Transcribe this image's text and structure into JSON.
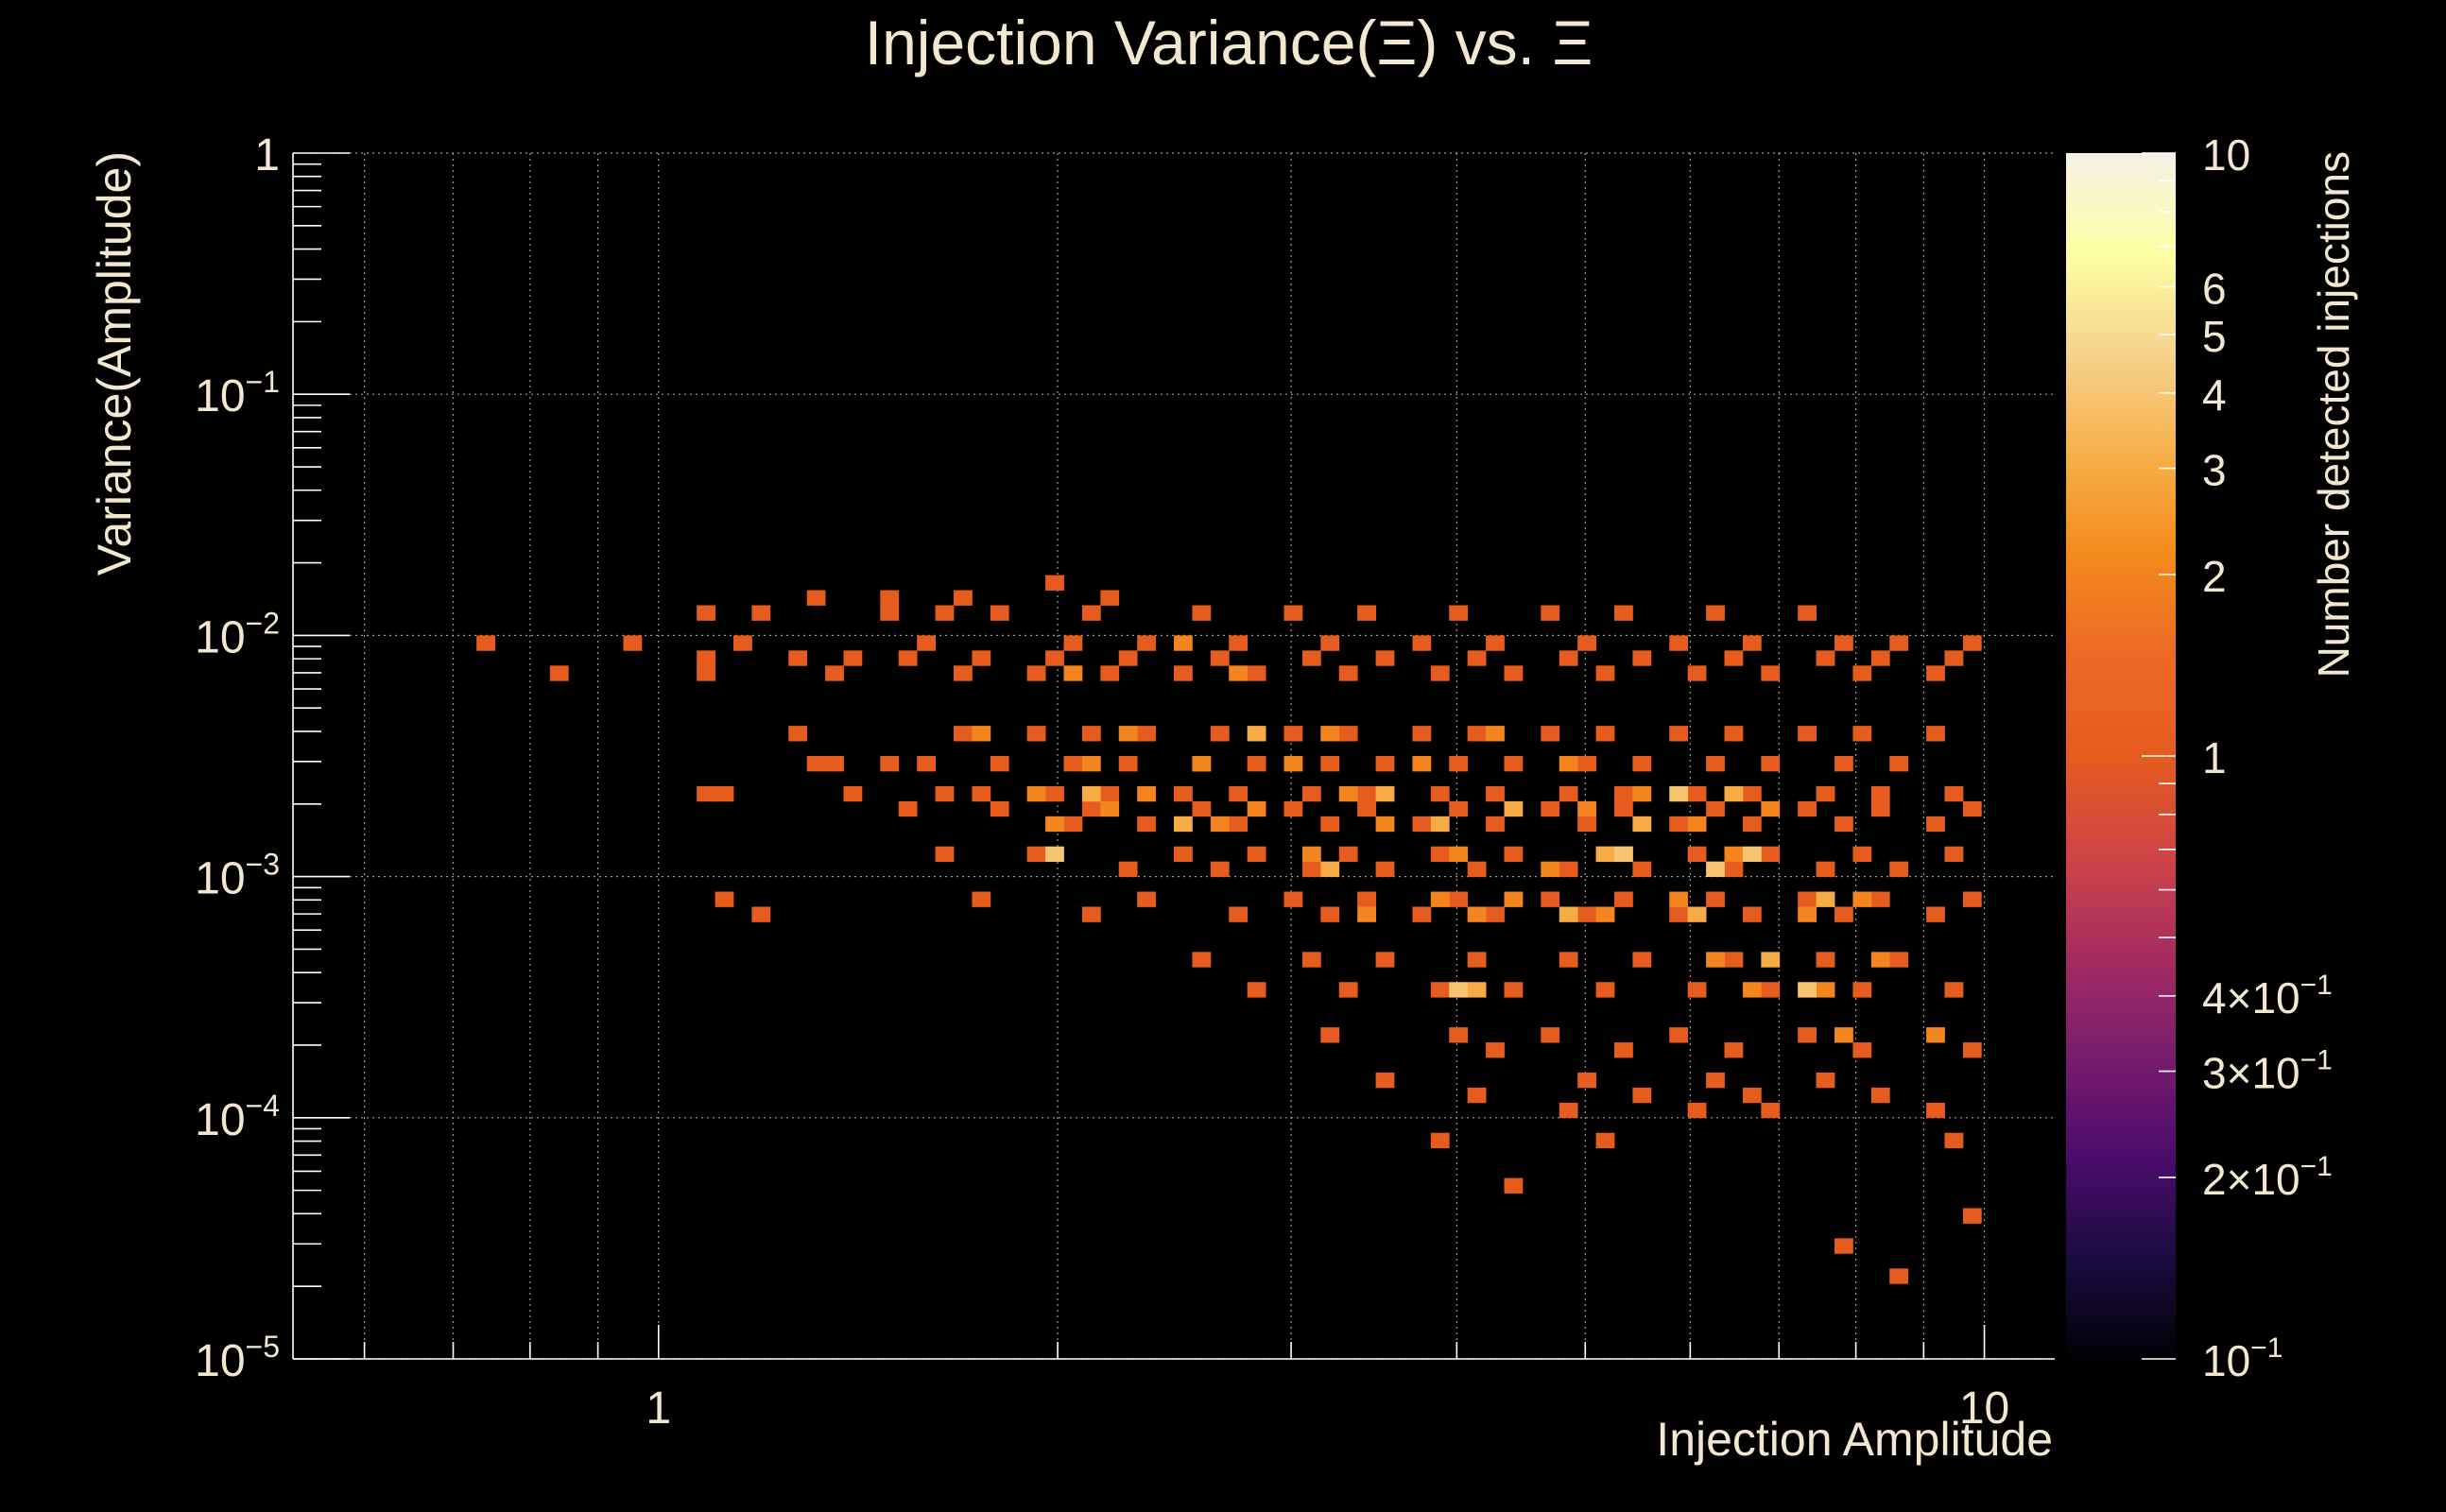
{
  "chart_data": {
    "type": "heatmap",
    "title": "Injection Variance(Ξ) vs. Ξ",
    "xlabel": "Injection Amplitude",
    "ylabel": "Variance(Amplitude)",
    "colorbar_label": "Number detected injections",
    "x_scale": "log",
    "y_scale": "log",
    "z_scale": "log",
    "xlim": [
      0.53,
      11.3
    ],
    "ylim": [
      1e-05,
      1
    ],
    "zlim": [
      0.1,
      10
    ],
    "grid": true,
    "x_ticks": [
      {
        "value": 1,
        "label": "1"
      },
      {
        "value": 10,
        "label": "10"
      }
    ],
    "y_ticks": [
      {
        "value": 1,
        "base": "1",
        "exp": ""
      },
      {
        "value": 0.1,
        "base": "10",
        "exp": "−1"
      },
      {
        "value": 0.01,
        "base": "10",
        "exp": "−2"
      },
      {
        "value": 0.001,
        "base": "10",
        "exp": "−3"
      },
      {
        "value": 0.0001,
        "base": "10",
        "exp": "−4"
      },
      {
        "value": 1e-05,
        "base": "10",
        "exp": "−5"
      }
    ],
    "colorbar_ticks": [
      {
        "value": 10,
        "label": "10"
      },
      {
        "value": 6,
        "label": "6"
      },
      {
        "value": 5,
        "label": "5"
      },
      {
        "value": 4,
        "label": "4"
      },
      {
        "value": 3,
        "label": "3"
      },
      {
        "value": 2,
        "label": "2"
      },
      {
        "value": 1,
        "label": "1"
      },
      {
        "value": 0.4,
        "label": "4×10",
        "exp": "−1"
      },
      {
        "value": 0.3,
        "label": "3×10",
        "exp": "−1"
      },
      {
        "value": 0.2,
        "label": "2×10",
        "exp": "−1"
      },
      {
        "value": 0.1,
        "label": "10",
        "exp": "−1"
      }
    ],
    "colormap": [
      "#000004",
      "#1b0c41",
      "#4a0c6b",
      "#781c6d",
      "#a52c60",
      "#cf4446",
      "#e55c1e",
      "#ed6925",
      "#f48a1c",
      "#f7b04a",
      "#f6d28c",
      "#fcffa4",
      "#f5f0e6"
    ],
    "bins": {
      "x_count": 96,
      "y_count": 80
    },
    "cells": [
      [
        0.74,
        0.0095,
        1
      ],
      [
        0.85,
        0.0066,
        1
      ],
      [
        0.95,
        0.0095,
        1
      ],
      [
        1.08,
        0.0118,
        1
      ],
      [
        1.08,
        0.0082,
        1
      ],
      [
        1.08,
        0.0066,
        1
      ],
      [
        1.08,
        0.0023,
        1
      ],
      [
        1.12,
        0.0023,
        1
      ],
      [
        1.12,
        0.00085,
        1
      ],
      [
        1.16,
        0.0095,
        1
      ],
      [
        1.21,
        0.0118,
        1
      ],
      [
        1.21,
        0.00065,
        1
      ],
      [
        1.26,
        0.0038,
        1
      ],
      [
        1.26,
        0.0082,
        1
      ],
      [
        1.31,
        0.0031,
        1
      ],
      [
        1.31,
        0.0147,
        1
      ],
      [
        1.36,
        0.0066,
        1
      ],
      [
        1.36,
        0.0031,
        1
      ],
      [
        1.41,
        0.0082,
        1
      ],
      [
        1.41,
        0.0023,
        1
      ],
      [
        1.47,
        0.0147,
        1
      ],
      [
        1.47,
        0.0118,
        1
      ],
      [
        1.47,
        0.0031,
        1
      ],
      [
        1.52,
        0.0082,
        1
      ],
      [
        1.52,
        0.0019,
        1
      ],
      [
        1.58,
        0.0031,
        1
      ],
      [
        1.58,
        0.0095,
        1
      ],
      [
        1.64,
        0.0118,
        1
      ],
      [
        1.64,
        0.0023,
        1
      ],
      [
        1.64,
        0.0013,
        1
      ],
      [
        1.7,
        0.0147,
        1
      ],
      [
        1.7,
        0.0066,
        1
      ],
      [
        1.7,
        0.0038,
        1
      ],
      [
        1.76,
        0.0082,
        1
      ],
      [
        1.76,
        0.0023,
        1
      ],
      [
        1.76,
        0.00085,
        1
      ],
      [
        1.83,
        0.0031,
        1
      ],
      [
        1.83,
        0.0019,
        1
      ],
      [
        1.83,
        0.0118,
        1
      ],
      [
        1.9,
        0.0066,
        1
      ],
      [
        1.9,
        0.0038,
        1
      ],
      [
        1.9,
        0.0013,
        1
      ],
      [
        1.97,
        0.0175,
        1
      ],
      [
        1.97,
        0.0082,
        1
      ],
      [
        1.97,
        0.0023,
        1
      ],
      [
        2.04,
        0.0095,
        1
      ],
      [
        2.04,
        0.0031,
        1
      ],
      [
        2.04,
        0.0016,
        1
      ],
      [
        2.12,
        0.0118,
        1
      ],
      [
        2.12,
        0.0038,
        1
      ],
      [
        2.12,
        0.0019,
        1
      ],
      [
        2.12,
        0.00065,
        1
      ],
      [
        2.2,
        0.0147,
        1
      ],
      [
        2.2,
        0.0066,
        1
      ],
      [
        2.2,
        0.0023,
        1
      ],
      [
        2.28,
        0.0082,
        1
      ],
      [
        2.28,
        0.0031,
        1
      ],
      [
        2.28,
        0.0011,
        1
      ],
      [
        2.37,
        0.0095,
        1
      ],
      [
        2.37,
        0.0038,
        1
      ],
      [
        2.37,
        0.0016,
        1
      ],
      [
        2.37,
        0.00085,
        1
      ],
      [
        2.46,
        0.0066,
        1
      ],
      [
        2.46,
        0.0023,
        1
      ],
      [
        2.46,
        0.0013,
        1
      ],
      [
        2.55,
        0.0118,
        1
      ],
      [
        2.55,
        0.0031,
        1
      ],
      [
        2.55,
        0.0019,
        1
      ],
      [
        2.55,
        0.00045,
        1
      ],
      [
        2.65,
        0.0082,
        1
      ],
      [
        2.65,
        0.0038,
        1
      ],
      [
        2.65,
        0.0011,
        1
      ],
      [
        2.75,
        0.0095,
        1
      ],
      [
        2.75,
        0.0023,
        1
      ],
      [
        2.75,
        0.0016,
        1
      ],
      [
        2.75,
        0.00065,
        1
      ],
      [
        2.86,
        0.0066,
        1
      ],
      [
        2.86,
        0.0031,
        1
      ],
      [
        2.86,
        0.0013,
        1
      ],
      [
        2.86,
        0.00035,
        1
      ],
      [
        2.97,
        0.0118,
        1
      ],
      [
        2.97,
        0.0038,
        1
      ],
      [
        2.97,
        0.0019,
        1
      ],
      [
        2.97,
        0.00085,
        1
      ],
      [
        3.08,
        0.0082,
        1
      ],
      [
        3.08,
        0.0023,
        1
      ],
      [
        3.08,
        0.0011,
        1
      ],
      [
        3.08,
        0.00045,
        1
      ],
      [
        3.2,
        0.0095,
        1
      ],
      [
        3.2,
        0.0031,
        1
      ],
      [
        3.2,
        0.0016,
        1
      ],
      [
        3.2,
        0.00065,
        1
      ],
      [
        3.2,
        0.00022,
        1
      ],
      [
        3.32,
        0.0066,
        1
      ],
      [
        3.32,
        0.0038,
        1
      ],
      [
        3.32,
        0.0013,
        1
      ],
      [
        3.32,
        0.00035,
        1
      ],
      [
        3.45,
        0.0118,
        1
      ],
      [
        3.45,
        0.0023,
        1
      ],
      [
        3.45,
        0.0019,
        1
      ],
      [
        3.45,
        0.00085,
        1
      ],
      [
        3.58,
        0.0082,
        1
      ],
      [
        3.58,
        0.0031,
        1
      ],
      [
        3.58,
        0.0011,
        1
      ],
      [
        3.58,
        0.00045,
        1
      ],
      [
        3.58,
        0.00015,
        1
      ],
      [
        3.72,
        0.0095,
        1
      ],
      [
        3.72,
        0.0038,
        1
      ],
      [
        3.72,
        0.0016,
        1
      ],
      [
        3.72,
        0.00065,
        1
      ],
      [
        3.86,
        0.0066,
        1
      ],
      [
        3.86,
        0.0023,
        1
      ],
      [
        3.86,
        0.0013,
        1
      ],
      [
        3.86,
        0.00035,
        1
      ],
      [
        3.86,
        8e-05,
        1
      ],
      [
        4.01,
        0.0118,
        1
      ],
      [
        4.01,
        0.0031,
        1
      ],
      [
        4.01,
        0.0019,
        1
      ],
      [
        4.01,
        0.00085,
        1
      ],
      [
        4.01,
        0.00022,
        1
      ],
      [
        4.16,
        0.0082,
        1
      ],
      [
        4.16,
        0.0038,
        1
      ],
      [
        4.16,
        0.0011,
        1
      ],
      [
        4.16,
        0.00045,
        1
      ],
      [
        4.16,
        0.00013,
        1
      ],
      [
        4.32,
        0.0095,
        1
      ],
      [
        4.32,
        0.0023,
        1
      ],
      [
        4.32,
        0.0016,
        1
      ],
      [
        4.32,
        0.00065,
        1
      ],
      [
        4.32,
        0.00018,
        1
      ],
      [
        4.48,
        0.0066,
        1
      ],
      [
        4.48,
        0.0031,
        1
      ],
      [
        4.48,
        0.0013,
        1
      ],
      [
        4.48,
        0.00035,
        1
      ],
      [
        4.48,
        5e-05,
        1
      ],
      [
        4.65,
        0.0118,
        1
      ],
      [
        4.65,
        0.0038,
        1
      ],
      [
        4.65,
        0.0019,
        1
      ],
      [
        4.65,
        0.00085,
        1
      ],
      [
        4.65,
        0.00022,
        1
      ],
      [
        4.83,
        0.0082,
        1
      ],
      [
        4.83,
        0.0023,
        1
      ],
      [
        4.83,
        0.0011,
        1
      ],
      [
        4.83,
        0.00045,
        1
      ],
      [
        4.83,
        0.00011,
        1
      ],
      [
        5.01,
        0.0095,
        1
      ],
      [
        5.01,
        0.0031,
        1
      ],
      [
        5.01,
        0.0016,
        1
      ],
      [
        5.01,
        0.00065,
        1
      ],
      [
        5.01,
        0.00015,
        1
      ],
      [
        5.2,
        0.0066,
        1
      ],
      [
        5.2,
        0.0038,
        1
      ],
      [
        5.2,
        0.0013,
        1
      ],
      [
        5.2,
        0.00035,
        1
      ],
      [
        5.2,
        8e-05,
        1
      ],
      [
        5.4,
        0.0118,
        1
      ],
      [
        5.4,
        0.0023,
        1
      ],
      [
        5.4,
        0.0019,
        1
      ],
      [
        5.4,
        0.00085,
        1
      ],
      [
        5.4,
        0.00018,
        1
      ],
      [
        5.6,
        0.0082,
        1
      ],
      [
        5.6,
        0.0031,
        1
      ],
      [
        5.6,
        0.0011,
        1
      ],
      [
        5.6,
        0.00045,
        1
      ],
      [
        5.6,
        0.00013,
        1
      ],
      [
        5.81,
        0.0095,
        1
      ],
      [
        5.81,
        0.0038,
        1
      ],
      [
        5.81,
        0.0016,
        1
      ],
      [
        5.81,
        0.00065,
        1
      ],
      [
        5.81,
        0.00022,
        1
      ],
      [
        6.03,
        0.0066,
        1
      ],
      [
        6.03,
        0.0023,
        1
      ],
      [
        6.03,
        0.0013,
        1
      ],
      [
        6.03,
        0.00035,
        1
      ],
      [
        6.03,
        0.00011,
        1
      ],
      [
        6.26,
        0.0118,
        1
      ],
      [
        6.26,
        0.0031,
        1
      ],
      [
        6.26,
        0.0019,
        1
      ],
      [
        6.26,
        0.00085,
        1
      ],
      [
        6.26,
        0.00015,
        1
      ],
      [
        6.5,
        0.0082,
        1
      ],
      [
        6.5,
        0.0038,
        1
      ],
      [
        6.5,
        0.0011,
        1
      ],
      [
        6.5,
        0.00045,
        1
      ],
      [
        6.5,
        0.00018,
        1
      ],
      [
        6.74,
        0.0095,
        1
      ],
      [
        6.74,
        0.0023,
        1
      ],
      [
        6.74,
        0.0016,
        1
      ],
      [
        6.74,
        0.00065,
        1
      ],
      [
        6.74,
        0.00013,
        1
      ],
      [
        7.0,
        0.0066,
        1
      ],
      [
        7.0,
        0.0031,
        1
      ],
      [
        7.0,
        0.0013,
        1
      ],
      [
        7.0,
        0.00035,
        1
      ],
      [
        7.0,
        0.00011,
        1
      ],
      [
        7.26,
        0.0118,
        1
      ],
      [
        7.26,
        0.0038,
        1
      ],
      [
        7.26,
        0.0019,
        1
      ],
      [
        7.26,
        0.00085,
        1
      ],
      [
        7.26,
        0.00022,
        1
      ],
      [
        7.54,
        0.0082,
        1
      ],
      [
        7.54,
        0.0023,
        1
      ],
      [
        7.54,
        0.0011,
        1
      ],
      [
        7.54,
        0.00045,
        1
      ],
      [
        7.54,
        0.00015,
        1
      ],
      [
        7.82,
        0.0095,
        1
      ],
      [
        7.82,
        0.0031,
        1
      ],
      [
        7.82,
        0.0016,
        1
      ],
      [
        7.82,
        0.00065,
        1
      ],
      [
        7.82,
        3e-05,
        1
      ],
      [
        8.12,
        0.0066,
        1
      ],
      [
        8.12,
        0.0038,
        1
      ],
      [
        8.12,
        0.0013,
        1
      ],
      [
        8.12,
        0.00035,
        1
      ],
      [
        8.12,
        0.00018,
        1
      ],
      [
        8.43,
        0.0082,
        1
      ],
      [
        8.43,
        0.0023,
        1
      ],
      [
        8.43,
        0.0019,
        1
      ],
      [
        8.43,
        0.00085,
        1
      ],
      [
        8.43,
        0.00013,
        1
      ],
      [
        8.75,
        0.0095,
        1
      ],
      [
        8.75,
        0.0031,
        1
      ],
      [
        8.75,
        0.0011,
        1
      ],
      [
        8.75,
        0.00045,
        1
      ],
      [
        8.75,
        2.2e-05,
        1
      ],
      [
        9.08,
        0.0066,
        1
      ],
      [
        9.08,
        0.0038,
        1
      ],
      [
        9.08,
        0.0016,
        1
      ],
      [
        9.08,
        0.00065,
        1
      ],
      [
        9.08,
        0.00011,
        1
      ],
      [
        9.42,
        0.0082,
        1
      ],
      [
        9.42,
        0.0023,
        1
      ],
      [
        9.42,
        0.0013,
        1
      ],
      [
        9.42,
        0.00035,
        1
      ],
      [
        9.42,
        8e-05,
        1
      ],
      [
        9.78,
        0.0095,
        1
      ],
      [
        9.78,
        0.0019,
        1
      ],
      [
        9.78,
        0.00085,
        1
      ],
      [
        9.78,
        0.00018,
        1
      ],
      [
        9.78,
        3.8e-05,
        1
      ],
      [
        1.76,
        0.0038,
        2
      ],
      [
        1.9,
        0.0023,
        2
      ],
      [
        1.97,
        0.0016,
        2
      ],
      [
        2.04,
        0.0066,
        2
      ],
      [
        2.12,
        0.0031,
        2
      ],
      [
        2.2,
        0.0019,
        2
      ],
      [
        2.28,
        0.0038,
        2
      ],
      [
        2.37,
        0.0023,
        2
      ],
      [
        2.46,
        0.0095,
        2
      ],
      [
        2.55,
        0.0031,
        2
      ],
      [
        2.65,
        0.0016,
        2
      ],
      [
        2.75,
        0.0066,
        2
      ],
      [
        2.86,
        0.0019,
        2
      ],
      [
        2.97,
        0.0031,
        2
      ],
      [
        3.08,
        0.0013,
        2
      ],
      [
        3.2,
        0.0038,
        2
      ],
      [
        3.32,
        0.0023,
        2
      ],
      [
        3.45,
        0.00065,
        2
      ],
      [
        3.58,
        0.0016,
        2
      ],
      [
        3.72,
        0.0031,
        2
      ],
      [
        3.86,
        0.00085,
        2
      ],
      [
        4.01,
        0.0013,
        2
      ],
      [
        4.16,
        0.00065,
        2
      ],
      [
        4.32,
        0.0038,
        2
      ],
      [
        4.48,
        0.00085,
        2
      ],
      [
        4.65,
        0.0011,
        2
      ],
      [
        4.83,
        0.0031,
        2
      ],
      [
        5.01,
        0.0019,
        2
      ],
      [
        5.2,
        0.00065,
        2
      ],
      [
        5.4,
        0.0013,
        2
      ],
      [
        5.6,
        0.0023,
        2
      ],
      [
        5.81,
        0.00085,
        2
      ],
      [
        6.03,
        0.0016,
        2
      ],
      [
        6.26,
        0.00045,
        2
      ],
      [
        6.5,
        0.0013,
        2
      ],
      [
        6.74,
        0.00035,
        2
      ],
      [
        7.0,
        0.0019,
        2
      ],
      [
        7.26,
        0.00065,
        2
      ],
      [
        7.54,
        0.00035,
        2
      ],
      [
        7.82,
        0.00022,
        2
      ],
      [
        8.12,
        0.00085,
        2
      ],
      [
        8.43,
        0.00045,
        2
      ],
      [
        9.08,
        0.00022,
        2
      ],
      [
        2.12,
        0.0023,
        3
      ],
      [
        2.46,
        0.0016,
        3
      ],
      [
        2.86,
        0.0038,
        3
      ],
      [
        3.2,
        0.0011,
        3
      ],
      [
        3.58,
        0.0023,
        3
      ],
      [
        3.86,
        0.0016,
        3
      ],
      [
        4.16,
        0.00035,
        3
      ],
      [
        4.48,
        0.0019,
        3
      ],
      [
        4.83,
        0.00065,
        3
      ],
      [
        5.2,
        0.0013,
        3
      ],
      [
        5.6,
        0.0016,
        3
      ],
      [
        6.03,
        0.00065,
        3
      ],
      [
        6.5,
        0.0023,
        3
      ],
      [
        7.0,
        0.00045,
        3
      ],
      [
        7.54,
        0.00085,
        3
      ],
      [
        1.97,
        0.0013,
        4
      ],
      [
        4.01,
        0.00035,
        4
      ],
      [
        5.4,
        0.0013,
        4
      ],
      [
        5.81,
        0.0023,
        4
      ],
      [
        6.26,
        0.0011,
        4
      ],
      [
        6.74,
        0.0013,
        4
      ],
      [
        7.26,
        0.00035,
        4
      ]
    ]
  }
}
